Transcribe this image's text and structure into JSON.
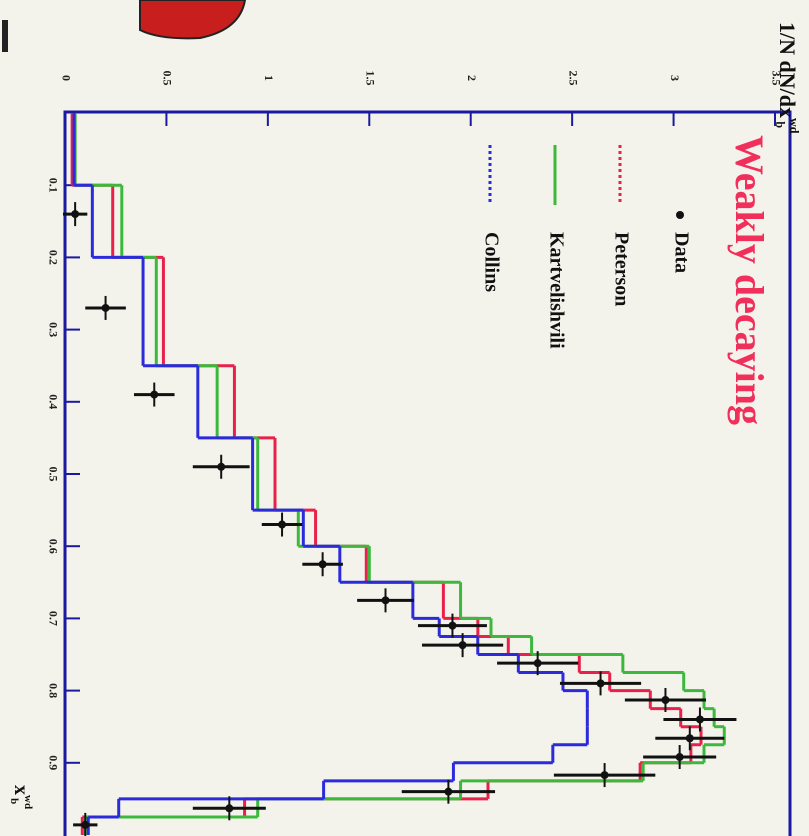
{
  "chart_data": {
    "type": "histogram",
    "title": "Weakly decaying",
    "ylabel": "1/N dN/dx",
    "ylabel_sup": "wd",
    "ylabel_sub": "b",
    "xlabel": "x",
    "xlabel_sup": "wd",
    "xlabel_sub": "b",
    "xlim": [
      0,
      1
    ],
    "ylim": [
      0,
      3.5
    ],
    "xticks": [
      0.1,
      0.2,
      0.3,
      0.4,
      0.5,
      0.6,
      0.7,
      0.8,
      0.9
    ],
    "yticks": [
      0,
      0.5,
      1,
      1.5,
      2,
      2.5,
      3,
      3.5
    ],
    "bins": [
      0,
      0.1,
      0.2,
      0.35,
      0.45,
      0.55,
      0.6,
      0.65,
      0.7,
      0.725,
      0.75,
      0.775,
      0.8,
      0.825,
      0.85,
      0.875,
      0.9,
      0.925,
      0.95,
      0.975,
      1
    ],
    "series": [
      {
        "name": "Peterson",
        "color": "#e8204a",
        "values": [
          0.05,
          0.25,
          0.5,
          0.85,
          1.05,
          1.25,
          1.5,
          1.88,
          2.05,
          2.2,
          2.55,
          2.7,
          2.9,
          3.05,
          3.15,
          3.1,
          2.85,
          2.1,
          0.9,
          0.1
        ]
      },
      {
        "name": "Kartvelishvili",
        "color": "#3cb83c",
        "values": [
          0.05,
          0.28,
          0.45,
          0.75,
          0.95,
          1.15,
          1.5,
          1.95,
          2.1,
          2.3,
          2.75,
          3.05,
          3.15,
          3.2,
          3.25,
          3.15,
          2.85,
          1.95,
          0.95,
          0.1
        ]
      },
      {
        "name": "Collins",
        "color": "#2b2bdc",
        "values": [
          0.03,
          0.12,
          0.37,
          0.64,
          0.91,
          1.16,
          1.34,
          1.7,
          1.83,
          2.02,
          2.22,
          2.44,
          2.56,
          2.56,
          2.56,
          2.39,
          1.9,
          1.26,
          0.25,
          0.1
        ]
      }
    ],
    "points": {
      "name": "Data",
      "color": "#111111",
      "x": [
        0.14,
        0.27,
        0.39,
        0.49,
        0.57,
        0.625,
        0.675,
        0.71,
        0.737,
        0.762,
        0.79,
        0.813,
        0.84,
        0.866,
        0.892,
        0.917,
        0.94,
        0.963,
        0.986
      ],
      "values": [
        0.05,
        0.2,
        0.44,
        0.77,
        1.07,
        1.27,
        1.58,
        1.91,
        1.96,
        2.33,
        2.64,
        2.96,
        3.13,
        3.08,
        3.03,
        2.66,
        1.89,
        0.81,
        0.1
      ],
      "errors": [
        0.06,
        0.1,
        0.1,
        0.14,
        0.1,
        0.1,
        0.14,
        0.17,
        0.2,
        0.2,
        0.2,
        0.2,
        0.18,
        0.17,
        0.18,
        0.25,
        0.23,
        0.18,
        0.06
      ]
    }
  }
}
